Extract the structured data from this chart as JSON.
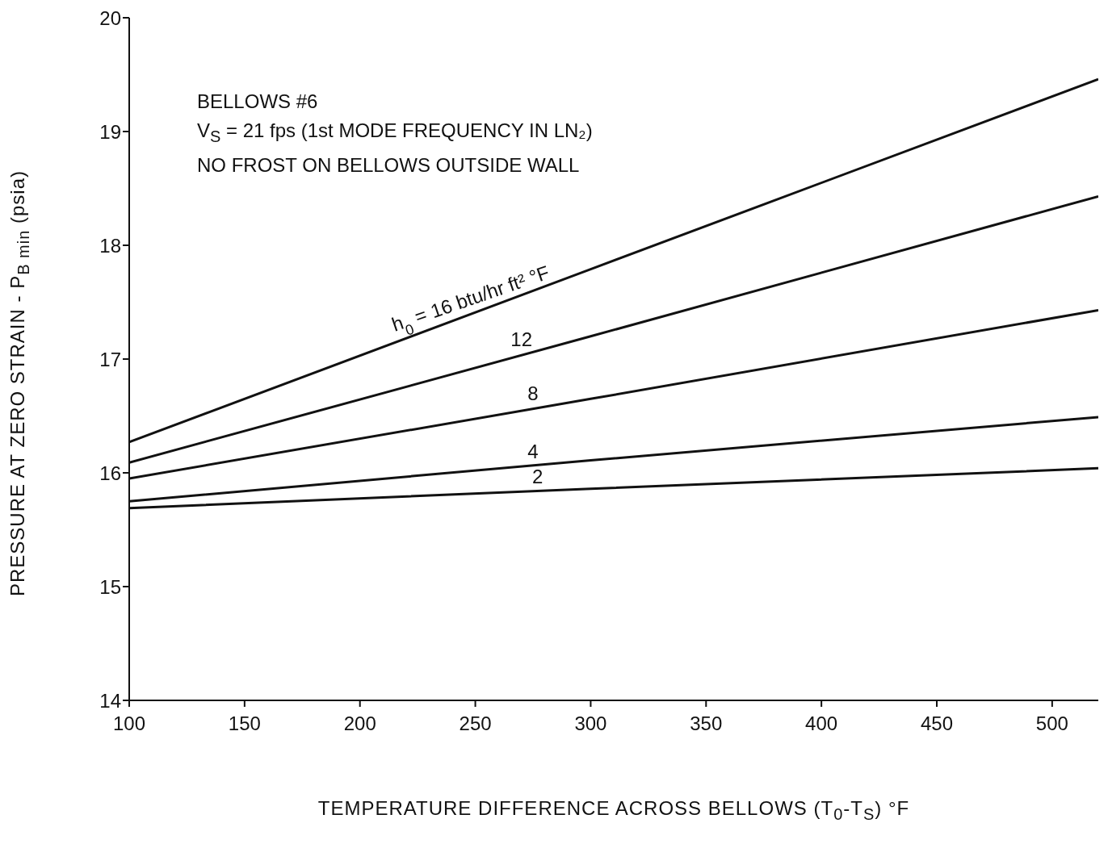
{
  "chart_data": {
    "type": "line",
    "xlabel": "TEMPERATURE DIFFERENCE ACROSS BELLOWS (T$_{0}$-T$_{S}$) °F",
    "ylabel": "PRESSURE AT ZERO STRAIN - P$_{B min}$ (psia)",
    "xlim": [
      100,
      520
    ],
    "xticks": [
      100,
      150,
      200,
      250,
      300,
      350,
      400,
      450,
      500
    ],
    "ylim": [
      14,
      20
    ],
    "yticks": [
      14,
      15,
      16,
      17,
      18,
      19,
      20
    ],
    "grid": false,
    "marker": "none",
    "line_style": "solid",
    "x": [
      100,
      300,
      520
    ],
    "series": [
      {
        "color": "#111111",
        "values": [
          16.27,
          17.79,
          19.46
        ]
      },
      {
        "color": "#111111",
        "values": [
          16.09,
          17.2,
          18.43
        ]
      },
      {
        "color": "#111111",
        "values": [
          15.95,
          16.65,
          17.43
        ]
      },
      {
        "color": "#111111",
        "values": [
          15.75,
          16.11,
          16.49
        ]
      },
      {
        "color": "#111111",
        "values": [
          15.69,
          15.86,
          16.04
        ]
      }
    ],
    "annotations": [
      "BELLOWS #6",
      "V$_{S}$ = 21 fps (1st MODE FREQUENCY IN LN₂)",
      "NO FROST ON BELLOWS OUTSIDE WALL",
      {
        "text": "h$_{0}$ = 16 btu/hr ft² °F",
        "x": 250,
        "y": 17.41
      },
      {
        "text": "12",
        "x": 270,
        "y": 17.04
      },
      {
        "text": "8",
        "x": 275,
        "y": 16.57
      },
      {
        "text": "4",
        "x": 275,
        "y": 16.06
      },
      {
        "text": "2",
        "x": 277,
        "y": 15.84
      }
    ]
  }
}
